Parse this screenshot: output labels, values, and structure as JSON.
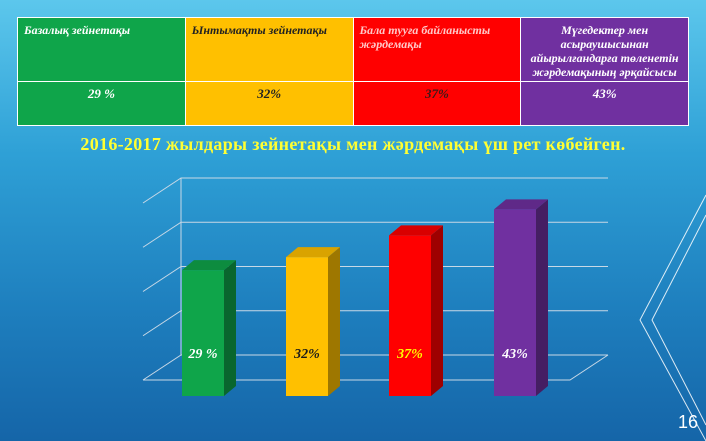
{
  "table": {
    "headers": [
      "Базалық зейнетақы",
      "Ынтымақты зейнетақы",
      "Бала тууға байланысты жәрдемақы",
      "Мүгедектер мен асыраушысынан айырылғандарға төленетін жәрдемақының әрқайсысы"
    ],
    "values": [
      "29 %",
      "32%",
      "37%",
      "43%"
    ]
  },
  "headline": "2016-2017 жылдары зейнетақы мен жәрдемақы үш рет көбейген.",
  "page_number": "16",
  "colors": {
    "green": "#0fa54a",
    "yellow": "#ffc000",
    "red": "#ff0000",
    "purple": "#7030a0"
  },
  "chart_data": {
    "type": "bar",
    "categories": [
      "Базалық зейнетақы",
      "Ынтымақты зейнетақы",
      "Бала тууға байланысты жәрдемақы",
      "Мүгедектер мен асыраушысынан айырылғандарға төленетін жәрдемақының әрқайсысы"
    ],
    "values": [
      29,
      32,
      37,
      43
    ],
    "data_labels": [
      "29 %",
      "32%",
      "37%",
      "43%"
    ],
    "colors": [
      "#0fa54a",
      "#ffc000",
      "#ff0000",
      "#7030a0"
    ],
    "title": "",
    "xlabel": "",
    "ylabel": "",
    "ylim": [
      0,
      50
    ],
    "grid": true,
    "style": "3d"
  }
}
